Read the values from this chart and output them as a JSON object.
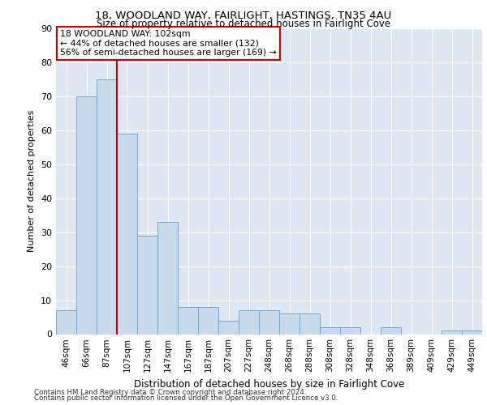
{
  "title_line1": "18, WOODLAND WAY, FAIRLIGHT, HASTINGS, TN35 4AU",
  "title_line2": "Size of property relative to detached houses in Fairlight Cove",
  "xlabel": "Distribution of detached houses by size in Fairlight Cove",
  "ylabel": "Number of detached properties",
  "categories": [
    "46sqm",
    "66sqm",
    "87sqm",
    "107sqm",
    "127sqm",
    "147sqm",
    "167sqm",
    "187sqm",
    "207sqm",
    "227sqm",
    "248sqm",
    "268sqm",
    "288sqm",
    "308sqm",
    "328sqm",
    "348sqm",
    "368sqm",
    "389sqm",
    "409sqm",
    "429sqm",
    "449sqm"
  ],
  "values": [
    7,
    70,
    75,
    59,
    29,
    33,
    8,
    8,
    4,
    7,
    7,
    6,
    6,
    2,
    2,
    0,
    2,
    0,
    0,
    1,
    1
  ],
  "bar_color": "#c9daea",
  "bar_edge_color": "#6fa8d6",
  "vline_x_index": 3,
  "vline_color": "#cc0000",
  "annotation_text": "18 WOODLAND WAY: 102sqm\n← 44% of detached houses are smaller (132)\n56% of semi-detached houses are larger (169) →",
  "annotation_box_color": "#ffffff",
  "annotation_box_edge": "#cc0000",
  "ylim": [
    0,
    90
  ],
  "yticks": [
    0,
    10,
    20,
    30,
    40,
    50,
    60,
    70,
    80,
    90
  ],
  "bg_color": "#dde8f3",
  "footer1": "Contains HM Land Registry data © Crown copyright and database right 2024.",
  "footer2": "Contains public sector information licensed under the Open Government Licence v3.0."
}
